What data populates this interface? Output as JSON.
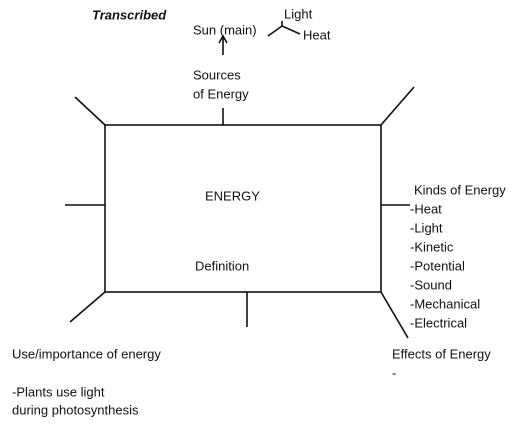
{
  "title": "Transcribed",
  "center": {
    "label": "ENERGY",
    "definition": "Definition"
  },
  "sources": {
    "label_lines": [
      "Sources",
      "of Energy"
    ],
    "main": "Sun (main)",
    "branches": [
      "Light",
      "Heat"
    ]
  },
  "kinds": {
    "title": "Kinds of Energy",
    "items": [
      "-Heat",
      "-Light",
      "-Kinetic",
      "-Potential",
      "-Sound",
      "-Mechanical",
      "-Electrical"
    ]
  },
  "uses": {
    "title": "Use/importance of energy",
    "lines": [
      "-Plants use light",
      "during photosynthesis"
    ]
  },
  "effects": {
    "title": "Effects of Energy",
    "items": [
      "-"
    ]
  }
}
